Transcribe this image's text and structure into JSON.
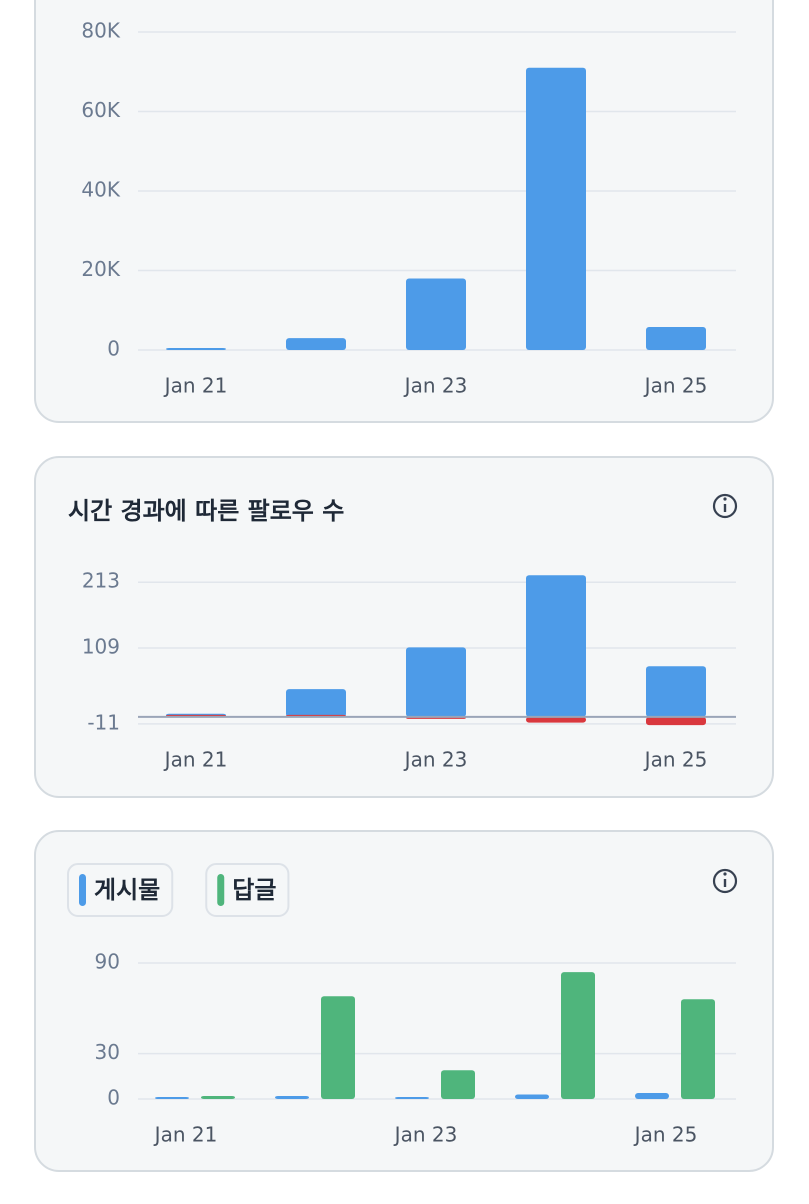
{
  "chart_data": [
    {
      "type": "bar",
      "barmode": "overlay",
      "categories": [
        "Jan 21",
        null,
        "Jan 23",
        null,
        "Jan 25"
      ],
      "series": [
        {
          "color": "#4d9be8",
          "values": [
            300,
            3000,
            18000,
            71000,
            5800
          ]
        }
      ],
      "ylim": [
        0,
        80000
      ],
      "yticks": [
        0,
        {
          "value": 20000,
          "label": "20K"
        },
        {
          "value": 40000,
          "label": "40K"
        },
        {
          "value": 60000,
          "label": "60K"
        },
        {
          "value": 80000,
          "label": "80K"
        }
      ],
      "grid": true
    },
    {
      "type": "bar",
      "barmode": "overlay",
      "title": "시간 경과에 따른 팔로우 수",
      "categories": [
        "Jan 21",
        null,
        "Jan 23",
        null,
        "Jan 25"
      ],
      "series": [
        {
          "color": "#4d9be8",
          "values": [
            5,
            44,
            110,
            224,
            80
          ]
        },
        {
          "color": "#d9383e",
          "values": [
            0,
            0,
            -1,
            -9,
            -13
          ]
        }
      ],
      "ylim": [
        -16,
        226
      ],
      "yticks": [
        -11,
        109,
        213
      ],
      "grid": true
    },
    {
      "type": "bar",
      "barmode": "group",
      "categories": [
        "Jan 21",
        null,
        "Jan 23",
        null,
        "Jan 25"
      ],
      "series": [
        {
          "name": "게시물",
          "color": "#4d9be8",
          "values": [
            0,
            2,
            1,
            3,
            4
          ]
        },
        {
          "name": "답글",
          "color": "#4fb57c",
          "values": [
            2,
            68,
            19,
            84,
            66
          ]
        }
      ],
      "ylim": [
        0,
        90
      ],
      "yticks": [
        0,
        30,
        90
      ],
      "grid": true
    }
  ]
}
